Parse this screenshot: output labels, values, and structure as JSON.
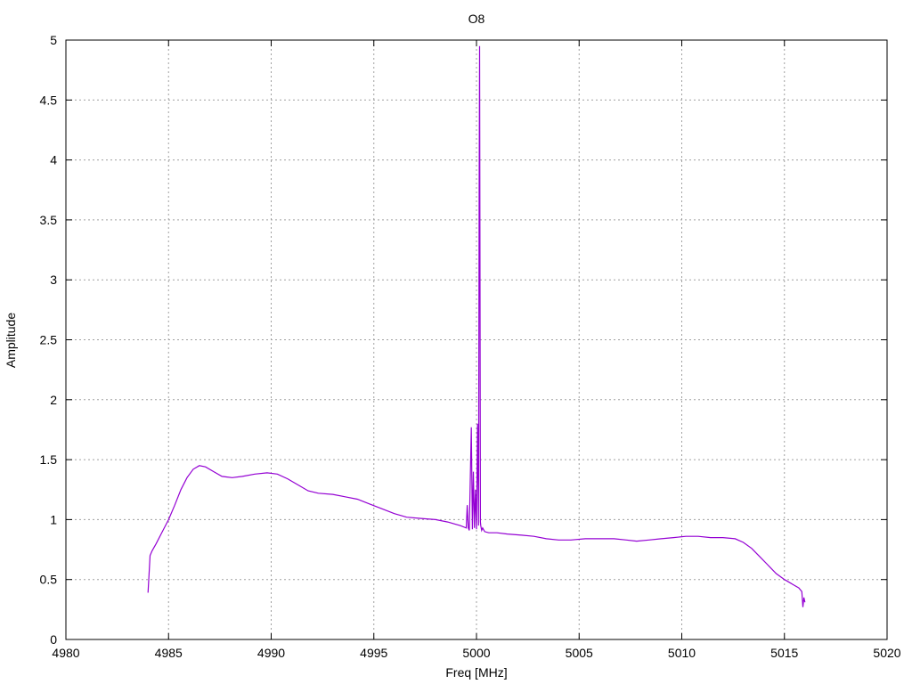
{
  "chart_data": {
    "type": "line",
    "title": "O8",
    "xlabel": "Freq [MHz]",
    "ylabel": "Amplitude",
    "xlim": [
      4980,
      5020
    ],
    "ylim": [
      0,
      5
    ],
    "grid": true,
    "line_color": "#9400d3",
    "xticks": [
      4980,
      4985,
      4990,
      4995,
      5000,
      5005,
      5010,
      5015,
      5020
    ],
    "xtick_labels": [
      "4980",
      "4985",
      "4990",
      "4995",
      "5000",
      "5005",
      "5010",
      "5015",
      "5020"
    ],
    "yticks": [
      0,
      0.5,
      1,
      1.5,
      2,
      2.5,
      3,
      3.5,
      4,
      4.5,
      5
    ],
    "ytick_labels": [
      "0",
      "0.5",
      "1",
      "1.5",
      "2",
      "2.5",
      "3",
      "3.5",
      "4",
      "4.5",
      "5"
    ],
    "series": [
      {
        "x": [
          4984.0,
          4984.05,
          4984.1,
          4984.2,
          4984.4,
          4984.7,
          4985.0,
          4985.3,
          4985.6,
          4985.9,
          4986.2,
          4986.5,
          4986.8,
          4987.2,
          4987.6,
          4988.1,
          4988.6,
          4989.2,
          4989.8,
          4990.3,
          4990.8,
          4991.3,
          4991.8,
          4992.3,
          4993.0,
          4993.6,
          4994.2,
          4994.8,
          4995.4,
          4996.0,
          4996.6,
          4997.3,
          4998.0,
          4998.6,
          4999.2,
          4999.5,
          4999.55,
          4999.6,
          4999.65,
          4999.75,
          4999.8,
          4999.85,
          4999.9,
          4999.95,
          5000.0,
          5000.05,
          5000.1,
          5000.13,
          5000.15,
          5000.17,
          5000.19,
          5000.21,
          5000.25,
          5000.3,
          5000.4,
          5000.6,
          5001.0,
          5001.5,
          5002.2,
          5002.8,
          5003.4,
          5004.0,
          5004.6,
          5005.3,
          5006.0,
          5006.7,
          5007.3,
          5007.8,
          5008.4,
          5009.0,
          5009.6,
          5010.2,
          5010.8,
          5011.4,
          5012.0,
          5012.6,
          5013.0,
          5013.4,
          5013.8,
          5014.2,
          5014.6,
          5015.0,
          5015.4,
          5015.7,
          5015.85,
          5015.9,
          5015.95,
          5016.0
        ],
        "y": [
          0.39,
          0.55,
          0.7,
          0.74,
          0.8,
          0.9,
          1.0,
          1.12,
          1.25,
          1.35,
          1.42,
          1.45,
          1.44,
          1.4,
          1.36,
          1.35,
          1.36,
          1.38,
          1.39,
          1.38,
          1.34,
          1.29,
          1.24,
          1.22,
          1.21,
          1.19,
          1.17,
          1.13,
          1.09,
          1.05,
          1.02,
          1.01,
          1.0,
          0.98,
          0.95,
          0.93,
          1.12,
          0.93,
          0.91,
          1.77,
          0.92,
          1.4,
          0.93,
          1.25,
          0.92,
          1.8,
          0.95,
          3.75,
          4.95,
          3.25,
          0.98,
          0.95,
          0.91,
          0.93,
          0.9,
          0.89,
          0.89,
          0.88,
          0.87,
          0.86,
          0.84,
          0.83,
          0.83,
          0.84,
          0.84,
          0.84,
          0.83,
          0.82,
          0.83,
          0.84,
          0.85,
          0.86,
          0.86,
          0.85,
          0.85,
          0.84,
          0.81,
          0.76,
          0.69,
          0.62,
          0.55,
          0.5,
          0.46,
          0.43,
          0.4,
          0.27,
          0.35,
          0.31
        ]
      }
    ]
  }
}
